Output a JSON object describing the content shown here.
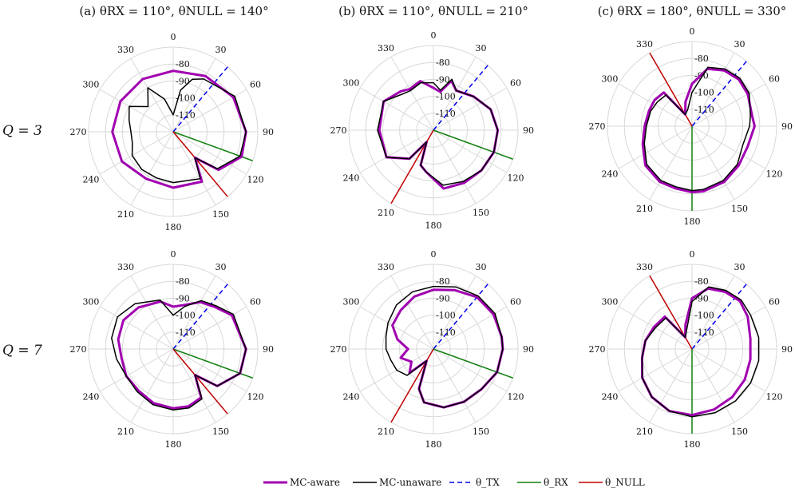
{
  "figure": {
    "legend": [
      {
        "label": "MC-aware",
        "color": "#a000b0",
        "dash": "",
        "width": 3
      },
      {
        "label": "MC-unaware",
        "color": "#000000",
        "dash": "",
        "width": 1.5
      },
      {
        "label": "θ_TX",
        "color": "#0000ee",
        "dash": "6,4",
        "width": 1.5
      },
      {
        "label": "θ_RX",
        "color": "#108010",
        "dash": "",
        "width": 1.5
      },
      {
        "label": "θ_NULL",
        "color": "#c00000",
        "dash": "",
        "width": 1.5
      }
    ],
    "column_titles": [
      "(a) θRX = 110°,  θNULL = 140°",
      "(b) θRX = 110°,  θNULL = 210°",
      "(c) θRX = 180°,  θNULL = 330°"
    ],
    "row_labels": [
      "Q = 3",
      "Q = 7"
    ]
  },
  "chart_data": [
    {
      "type": "polar-line",
      "id": "a3",
      "column": "a",
      "Q": 3,
      "theta_tx": 40,
      "theta_rx": 110,
      "theta_null": 140,
      "r_ticks": [
        -110,
        -100,
        -90,
        -80
      ],
      "r_range": [
        -120,
        -70
      ],
      "angle_ticks": [
        0,
        30,
        60,
        90,
        120,
        150,
        180,
        210,
        240,
        270,
        300,
        330
      ],
      "series": [
        {
          "name": "MC-aware",
          "theta": [
            0,
            30,
            60,
            90,
            110,
            130,
            140,
            150,
            180,
            210,
            240,
            270,
            300,
            330
          ],
          "r": [
            -84,
            -82,
            -79,
            -77,
            -77,
            -85,
            -100,
            -86,
            -87,
            -88,
            -85,
            -84,
            -84,
            -84
          ]
        },
        {
          "name": "MC-unaware",
          "theta": [
            0,
            10,
            20,
            30,
            60,
            90,
            110,
            130,
            140,
            150,
            180,
            200,
            220,
            240,
            255,
            270,
            285,
            300,
            315,
            330,
            345
          ],
          "r": [
            -110,
            -95,
            -87,
            -84,
            -78,
            -77,
            -78,
            -86,
            -100,
            -88,
            -90,
            -91,
            -91,
            -92,
            -95,
            -95,
            -93,
            -90,
            -99,
            -90,
            -100
          ]
        }
      ]
    },
    {
      "type": "polar-line",
      "id": "b3",
      "column": "b",
      "Q": 3,
      "theta_tx": 40,
      "theta_rx": 110,
      "theta_null": 210,
      "r_ticks": [
        -110,
        -100,
        -90,
        -80
      ],
      "r_range": [
        -120,
        -70
      ],
      "angle_ticks": [
        0,
        30,
        60,
        90,
        120,
        150,
        180,
        210,
        240,
        270,
        300,
        330
      ],
      "series": [
        {
          "name": "MC-aware",
          "theta": [
            0,
            10,
            20,
            30,
            50,
            70,
            90,
            110,
            130,
            150,
            170,
            190,
            200,
            210,
            220,
            240,
            270,
            300,
            320,
            330,
            345
          ],
          "r": [
            -95,
            -97,
            -89,
            -93,
            -89,
            -84,
            -82,
            -82,
            -83,
            -84,
            -85,
            -95,
            -98,
            -112,
            -98,
            -88,
            -88,
            -86,
            -90,
            -92,
            -90
          ]
        },
        {
          "name": "MC-unaware",
          "theta": [
            0,
            10,
            20,
            30,
            50,
            70,
            90,
            110,
            130,
            150,
            170,
            190,
            200,
            210,
            220,
            240,
            270,
            300,
            320,
            330,
            345
          ],
          "r": [
            -92,
            -96,
            -88,
            -93,
            -89,
            -84,
            -82,
            -82,
            -83,
            -85,
            -87,
            -95,
            -98,
            -112,
            -98,
            -88,
            -87,
            -86,
            -92,
            -93,
            -91
          ]
        }
      ]
    },
    {
      "type": "polar-line",
      "id": "c3",
      "column": "c",
      "Q": 3,
      "theta_tx": 40,
      "theta_rx": 180,
      "theta_null": 330,
      "r_ticks": [
        -110,
        -100,
        -90,
        -80
      ],
      "r_range": [
        -120,
        -70
      ],
      "angle_ticks": [
        0,
        30,
        60,
        90,
        120,
        150,
        180,
        210,
        240,
        270,
        300,
        330
      ],
      "series": [
        {
          "name": "MC-aware",
          "theta": [
            0,
            15,
            30,
            45,
            60,
            80,
            90,
            110,
            130,
            150,
            170,
            180,
            195,
            210,
            230,
            250,
            270,
            290,
            305,
            320,
            330,
            345
          ],
          "r": [
            -95,
            -85,
            -82,
            -81,
            -82,
            -84,
            -83,
            -85,
            -84,
            -82,
            -81,
            -81,
            -82,
            -82,
            -84,
            -89,
            -92,
            -93,
            -93,
            -94,
            -112,
            -105
          ]
        },
        {
          "name": "MC-unaware",
          "theta": [
            0,
            15,
            30,
            45,
            60,
            80,
            90,
            110,
            130,
            150,
            170,
            180,
            195,
            210,
            230,
            250,
            270,
            290,
            305,
            320,
            330,
            345
          ],
          "r": [
            -100,
            -84,
            -81,
            -80,
            -81,
            -85,
            -86,
            -88,
            -85,
            -83,
            -82,
            -82,
            -83,
            -83,
            -85,
            -90,
            -93,
            -94,
            -95,
            -96,
            -112,
            -110
          ]
        }
      ]
    },
    {
      "type": "polar-line",
      "id": "a7",
      "column": "a",
      "Q": 7,
      "theta_tx": 40,
      "theta_rx": 110,
      "theta_null": 140,
      "r_ticks": [
        -110,
        -100,
        -90,
        -80
      ],
      "r_range": [
        -120,
        -70
      ],
      "angle_ticks": [
        0,
        30,
        60,
        90,
        120,
        150,
        180,
        210,
        240,
        270,
        300,
        330
      ],
      "series": [
        {
          "name": "MC-aware",
          "theta": [
            0,
            15,
            30,
            45,
            60,
            90,
            110,
            130,
            140,
            150,
            165,
            180,
            200,
            220,
            240,
            260,
            280,
            300,
            320,
            345
          ],
          "r": [
            -95,
            -93,
            -88,
            -85,
            -80,
            -77,
            -78,
            -86,
            -100,
            -87,
            -85,
            -85,
            -86,
            -88,
            -88,
            -89,
            -87,
            -86,
            -88,
            -91
          ]
        },
        {
          "name": "MC-unaware",
          "theta": [
            0,
            15,
            30,
            45,
            60,
            90,
            110,
            130,
            140,
            150,
            165,
            180,
            200,
            220,
            240,
            260,
            280,
            300,
            320,
            345
          ],
          "r": [
            -100,
            -94,
            -87,
            -84,
            -79,
            -77,
            -78,
            -86,
            -100,
            -86,
            -84,
            -84,
            -85,
            -87,
            -88,
            -86,
            -83,
            -82,
            -85,
            -90
          ]
        }
      ]
    },
    {
      "type": "polar-line",
      "id": "b7",
      "column": "b",
      "Q": 7,
      "theta_tx": 40,
      "theta_rx": 110,
      "theta_null": 210,
      "r_ticks": [
        -110,
        -100,
        -90,
        -80
      ],
      "r_range": [
        -120,
        -70
      ],
      "angle_ticks": [
        0,
        30,
        60,
        90,
        120,
        150,
        180,
        210,
        240,
        270,
        300,
        330
      ],
      "series": [
        {
          "name": "MC-aware",
          "theta": [
            0,
            20,
            40,
            60,
            80,
            90,
            110,
            130,
            150,
            170,
            190,
            200,
            210,
            225,
            240,
            255,
            270,
            285,
            300,
            320,
            340
          ],
          "r": [
            -85,
            -83,
            -80,
            -79,
            -79,
            -79,
            -80,
            -83,
            -84,
            -85,
            -88,
            -95,
            -112,
            -100,
            -105,
            -100,
            -105,
            -98,
            -92,
            -90,
            -87
          ]
        },
        {
          "name": "MC-unaware",
          "theta": [
            0,
            20,
            40,
            60,
            80,
            90,
            110,
            130,
            150,
            170,
            190,
            200,
            210,
            225,
            240,
            255,
            270,
            285,
            300,
            320,
            340
          ],
          "r": [
            -83,
            -81,
            -79,
            -78,
            -79,
            -79,
            -80,
            -83,
            -84,
            -85,
            -88,
            -95,
            -112,
            -98,
            -95,
            -94,
            -92,
            -91,
            -89,
            -86,
            -84
          ]
        }
      ]
    },
    {
      "type": "polar-line",
      "id": "c7",
      "column": "c",
      "Q": 7,
      "theta_tx": 40,
      "theta_rx": 180,
      "theta_null": 330,
      "r_ticks": [
        -110,
        -100,
        -90,
        -80
      ],
      "r_range": [
        -120,
        -70
      ],
      "angle_ticks": [
        0,
        30,
        60,
        90,
        120,
        150,
        180,
        210,
        240,
        270,
        300,
        330
      ],
      "series": [
        {
          "name": "MC-aware",
          "theta": [
            0,
            15,
            30,
            45,
            60,
            80,
            100,
            120,
            140,
            160,
            180,
            200,
            220,
            240,
            260,
            280,
            300,
            320,
            330,
            345
          ],
          "r": [
            -90,
            -83,
            -81,
            -80,
            -82,
            -85,
            -85,
            -84,
            -83,
            -82,
            -81,
            -81,
            -83,
            -86,
            -90,
            -92,
            -94,
            -95,
            -112,
            -105
          ]
        },
        {
          "name": "MC-unaware",
          "theta": [
            0,
            15,
            30,
            45,
            60,
            80,
            100,
            120,
            140,
            160,
            180,
            200,
            220,
            240,
            260,
            280,
            300,
            320,
            330,
            345
          ],
          "r": [
            -92,
            -82,
            -80,
            -79,
            -80,
            -80,
            -80,
            -80,
            -80,
            -80,
            -80,
            -81,
            -83,
            -86,
            -90,
            -92,
            -95,
            -96,
            -112,
            -108
          ]
        }
      ]
    }
  ]
}
